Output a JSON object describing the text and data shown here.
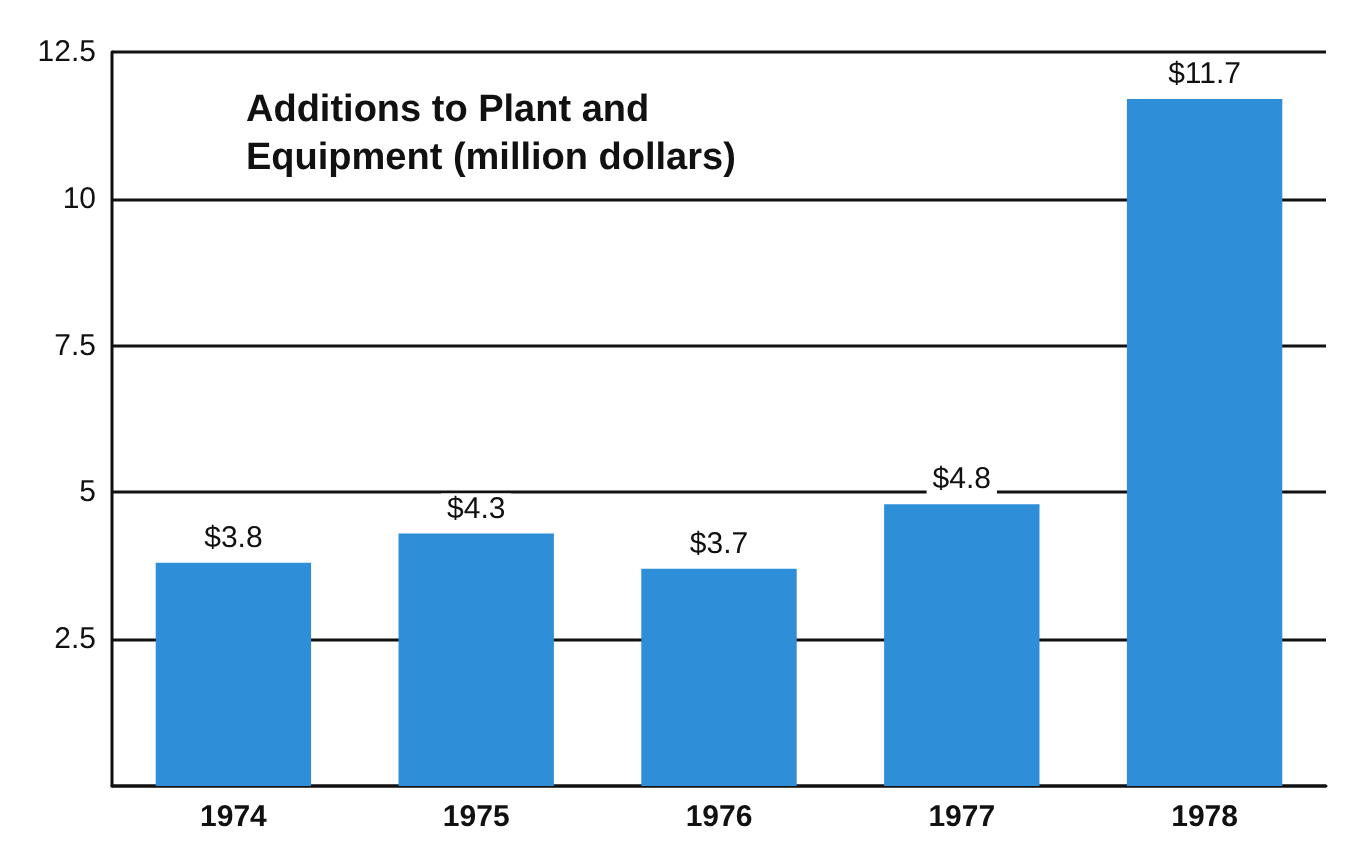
{
  "chart_data": {
    "type": "bar",
    "title": "Additions to Plant and\nEquipment (million dollars)",
    "categories": [
      "1974",
      "1975",
      "1976",
      "1977",
      "1978"
    ],
    "values": [
      3.8,
      4.3,
      3.7,
      4.8,
      11.7
    ],
    "value_labels": [
      "$3.8",
      "$4.3",
      "$3.7",
      "$4.8",
      "$11.7"
    ],
    "color": "#2e8fd8",
    "ylim": [
      0,
      12.5
    ],
    "yticks": [
      {
        "value": 0,
        "label": null
      },
      2.5,
      5,
      7.5,
      10,
      12.5
    ],
    "grid": "y"
  }
}
